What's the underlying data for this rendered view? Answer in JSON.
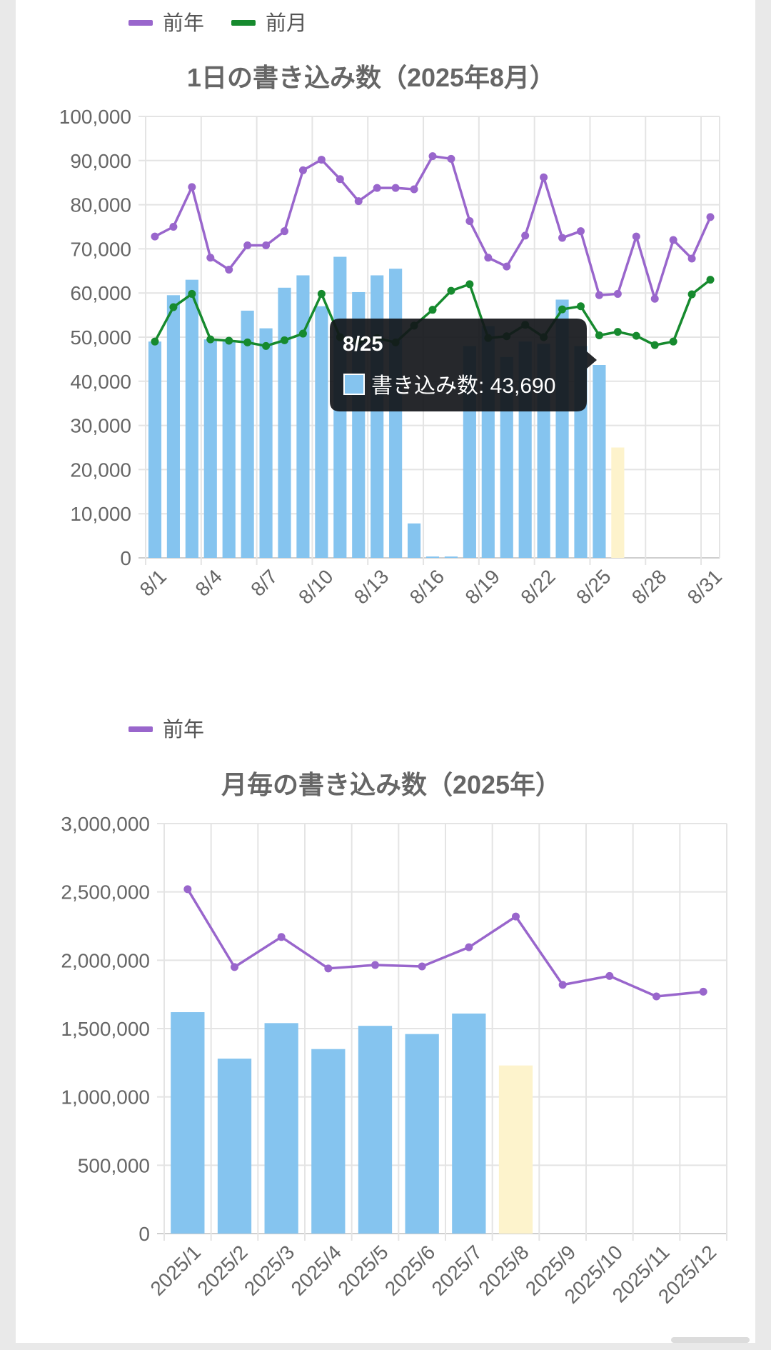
{
  "chart_data": [
    {
      "type": "bar",
      "title": "1日の書き込み数（2025年8月）",
      "legend": [
        "前年",
        "前月"
      ],
      "legend_position": "top-left",
      "grid": true,
      "ylim": [
        0,
        100000
      ],
      "y_ticks": [
        "100,000",
        "90,000",
        "80,000",
        "70,000",
        "60,000",
        "50,000",
        "40,000",
        "30,000",
        "20,000",
        "10,000",
        "0"
      ],
      "categories": [
        "8/1",
        "8/2",
        "8/3",
        "8/4",
        "8/5",
        "8/6",
        "8/7",
        "8/8",
        "8/9",
        "8/10",
        "8/11",
        "8/12",
        "8/13",
        "8/14",
        "8/15",
        "8/16",
        "8/17",
        "8/18",
        "8/19",
        "8/20",
        "8/21",
        "8/22",
        "8/23",
        "8/24",
        "8/25",
        "8/26",
        "8/27",
        "8/28",
        "8/29",
        "8/30",
        "8/31"
      ],
      "x_tick_labels": [
        "8/1",
        "8/4",
        "8/7",
        "8/10",
        "8/13",
        "8/16",
        "8/19",
        "8/22",
        "8/25",
        "8/28",
        "8/31"
      ],
      "series": [
        {
          "name": "書き込み数",
          "kind": "bar",
          "color": "#85c4ef",
          "values": [
            49000,
            59500,
            63000,
            49500,
            49000,
            56000,
            52000,
            61200,
            64000,
            57000,
            68200,
            60200,
            64000,
            65500,
            7800,
            300,
            300,
            48000,
            52500,
            45500,
            49000,
            48500,
            58500,
            48000,
            43690,
            null,
            null,
            null,
            null,
            null,
            null
          ]
        },
        {
          "name": "partial",
          "kind": "bar",
          "color": "#fdf3cc",
          "values": [
            null,
            null,
            null,
            null,
            null,
            null,
            null,
            null,
            null,
            null,
            null,
            null,
            null,
            null,
            null,
            null,
            null,
            null,
            null,
            null,
            null,
            null,
            null,
            null,
            null,
            25000,
            null,
            null,
            null,
            null,
            null
          ]
        },
        {
          "name": "前年",
          "kind": "line",
          "color": "#9966cc",
          "values": [
            72800,
            75000,
            84000,
            68000,
            65300,
            70800,
            70800,
            74000,
            87800,
            90200,
            85800,
            80800,
            83800,
            83800,
            83500,
            91000,
            90400,
            76300,
            68000,
            66000,
            73000,
            86200,
            72500,
            74000,
            59500,
            59800,
            72800,
            58700,
            72000,
            67800,
            77200
          ]
        },
        {
          "name": "前月",
          "kind": "line",
          "color": "#168a2e",
          "values": [
            49000,
            56800,
            59800,
            49500,
            49200,
            48800,
            48000,
            49300,
            50800,
            59800,
            50000,
            49000,
            49800,
            48800,
            52600,
            56200,
            60500,
            62000,
            49800,
            50200,
            52800,
            50000,
            56300,
            57000,
            50400,
            51200,
            50300,
            48200,
            49000,
            59700,
            63000
          ]
        }
      ],
      "tooltip": {
        "title": "8/25",
        "label": "書き込み数: 43,690",
        "index": 24
      }
    },
    {
      "type": "bar",
      "title": "月毎の書き込み数（2025年）",
      "legend": [
        "前年"
      ],
      "legend_position": "top-left",
      "grid": true,
      "ylim": [
        0,
        3000000
      ],
      "y_ticks": [
        "3,000,000",
        "2,500,000",
        "2,000,000",
        "1,500,000",
        "1,000,000",
        "500,000",
        "0"
      ],
      "categories": [
        "2025/1",
        "2025/2",
        "2025/3",
        "2025/4",
        "2025/5",
        "2025/6",
        "2025/7",
        "2025/8",
        "2025/9",
        "2025/10",
        "2025/11",
        "2025/12"
      ],
      "series": [
        {
          "name": "書き込み数",
          "kind": "bar",
          "color": "#85c4ef",
          "values": [
            1620000,
            1280000,
            1540000,
            1350000,
            1520000,
            1460000,
            1610000,
            null,
            null,
            null,
            null,
            null
          ]
        },
        {
          "name": "partial",
          "kind": "bar",
          "color": "#fdf3cc",
          "values": [
            null,
            null,
            null,
            null,
            null,
            null,
            null,
            1230000,
            null,
            null,
            null,
            null
          ]
        },
        {
          "name": "前年",
          "kind": "line",
          "color": "#9966cc",
          "values": [
            2520000,
            1950000,
            2170000,
            1940000,
            1965000,
            1955000,
            2095000,
            2320000,
            1820000,
            1885000,
            1735000,
            1770000
          ]
        }
      ]
    }
  ]
}
